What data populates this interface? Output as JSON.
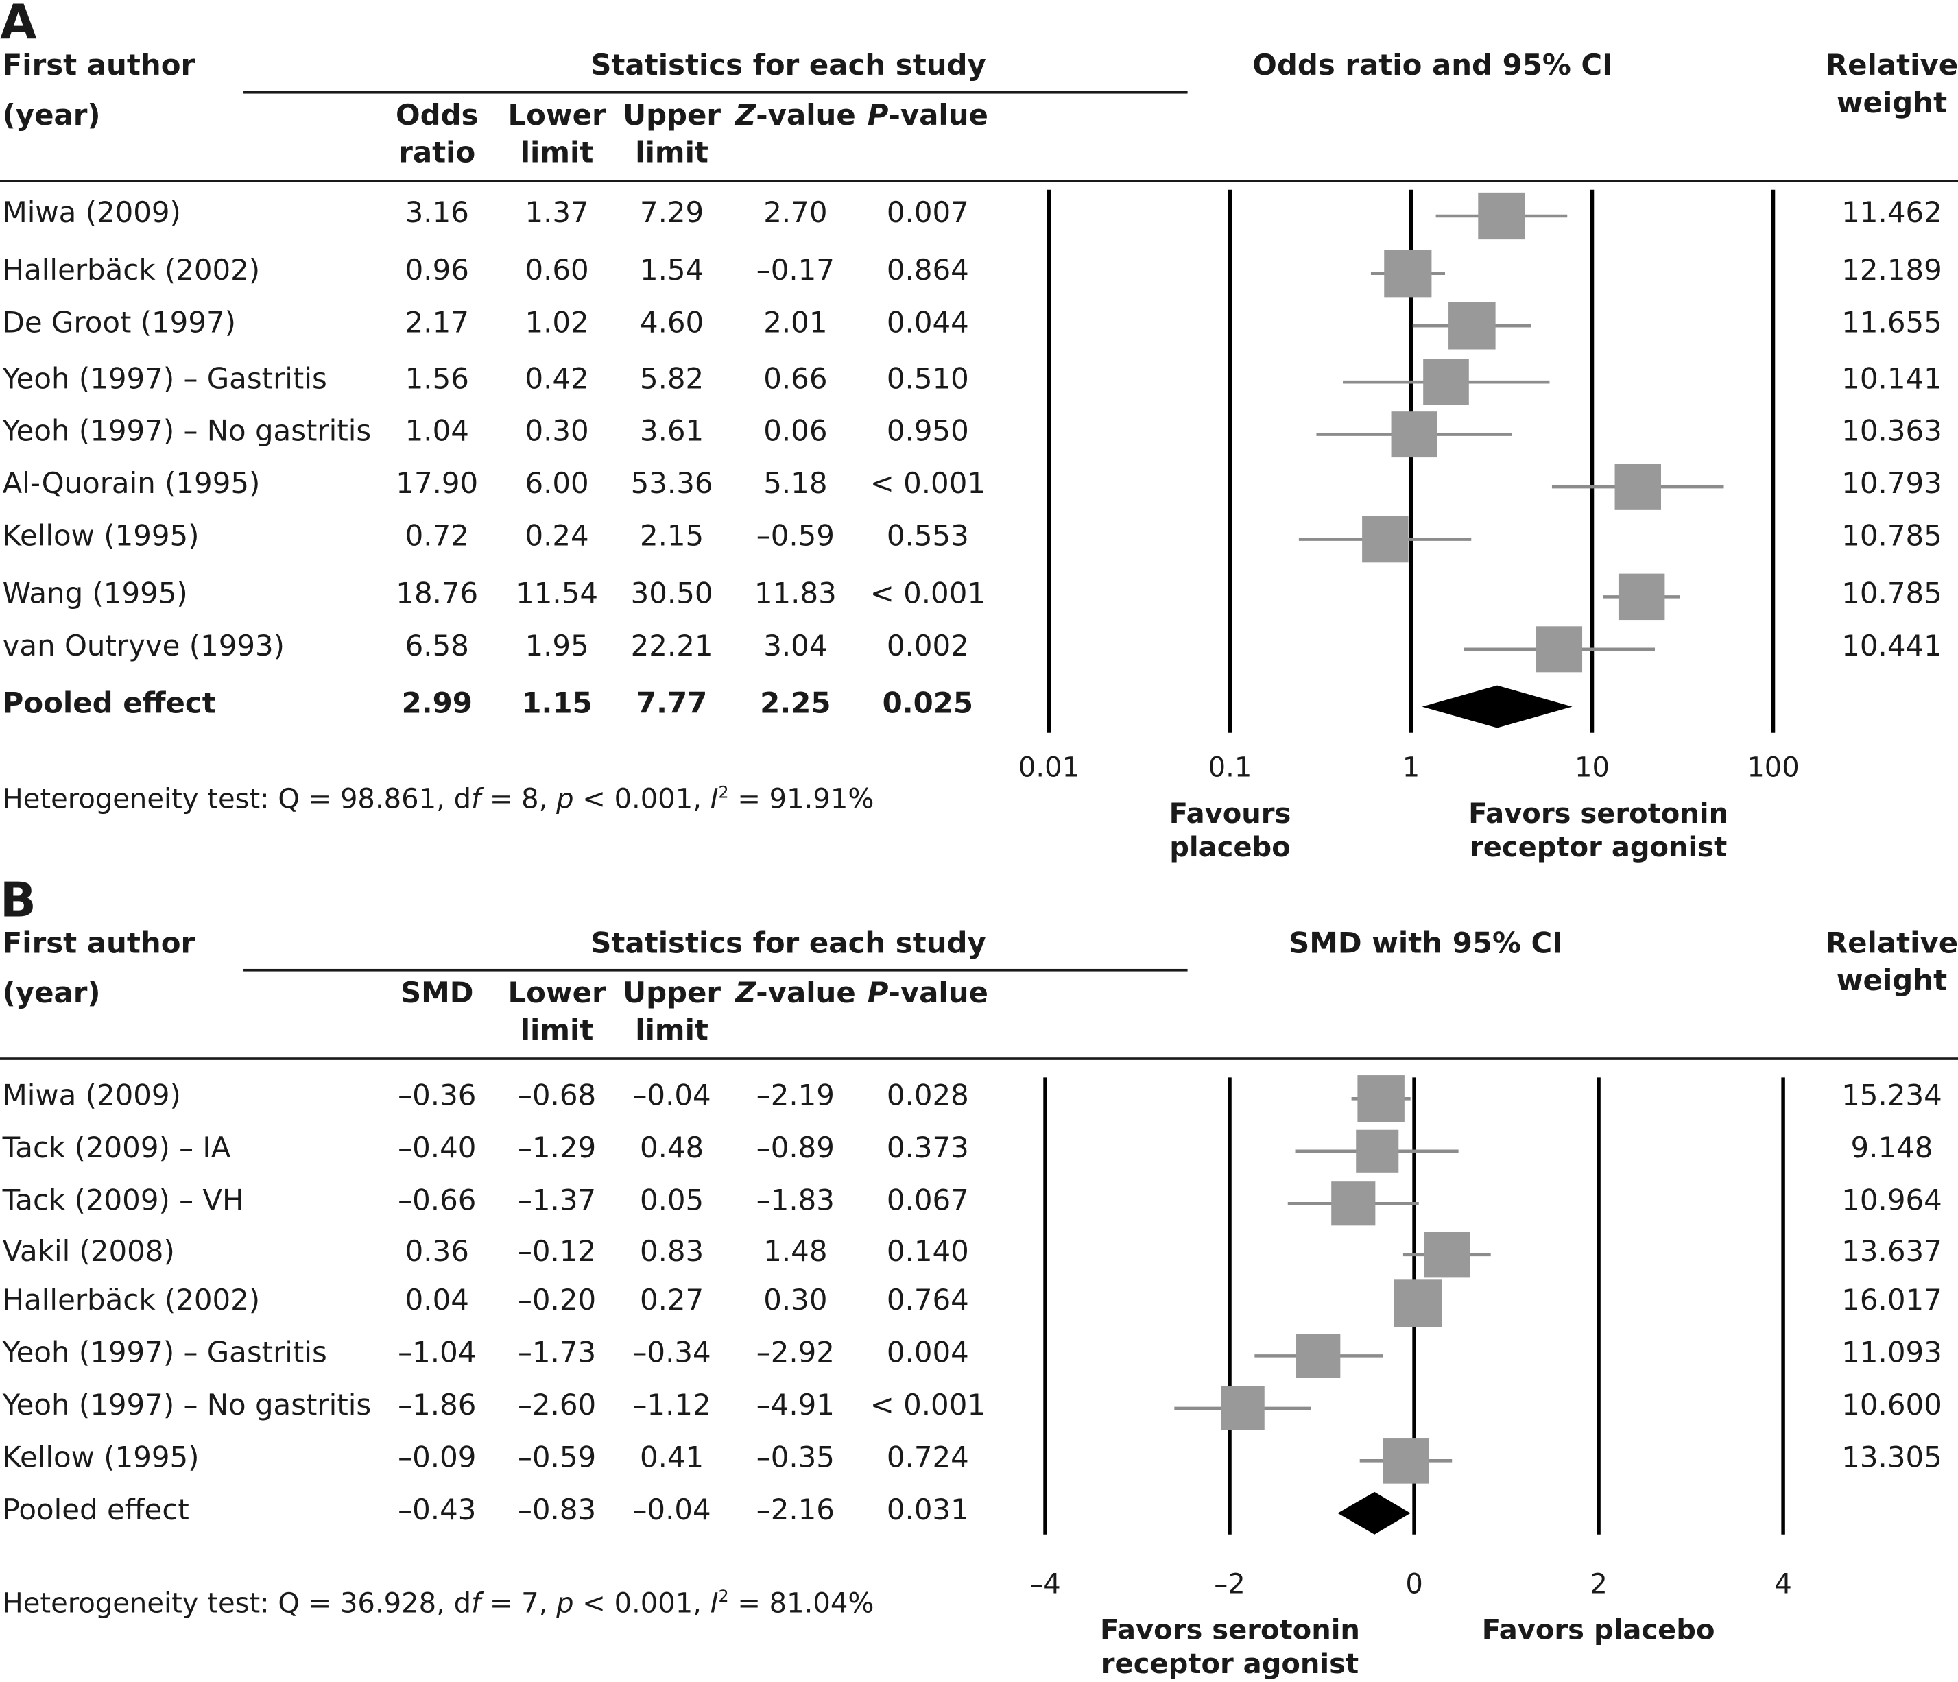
{
  "panels": [
    {
      "letter": "A",
      "header": {
        "first_author_line1": "First author",
        "first_author_line2": "(year)",
        "stats_title": "Statistics for each study",
        "col1": [
          "Odds",
          "ratio"
        ],
        "col2": [
          "Lower",
          "limit"
        ],
        "col3": [
          "Upper",
          "limit"
        ],
        "col4": "Z-value",
        "col5": "P-value",
        "plot_title": "Odds ratio and 95% CI",
        "weight": [
          "Relative",
          "weight"
        ]
      },
      "rows": [
        {
          "author": "Miwa (2009)",
          "est": "3.16",
          "lower": "1.37",
          "upper": "7.29",
          "z": "2.70",
          "p": "0.007",
          "weight": "11.462"
        },
        {
          "author": "Hallerbäck (2002)",
          "est": "0.96",
          "lower": "0.60",
          "upper": "1.54",
          "z": "–0.17",
          "p": "0.864",
          "weight": "12.189"
        },
        {
          "author": "De Groot (1997)",
          "est": "2.17",
          "lower": "1.02",
          "upper": "4.60",
          "z": "2.01",
          "p": "0.044",
          "weight": "11.655"
        },
        {
          "author": "Yeoh (1997) – Gastritis",
          "est": "1.56",
          "lower": "0.42",
          "upper": "5.82",
          "z": "0.66",
          "p": "0.510",
          "weight": "10.141"
        },
        {
          "author": "Yeoh (1997) – No gastritis",
          "est": "1.04",
          "lower": "0.30",
          "upper": "3.61",
          "z": "0.06",
          "p": "0.950",
          "weight": "10.363"
        },
        {
          "author": "Al-Quorain (1995)",
          "est": "17.90",
          "lower": "6.00",
          "upper": "53.36",
          "z": "5.18",
          "p": "< 0.001",
          "weight": "10.793"
        },
        {
          "author": "Kellow (1995)",
          "est": "0.72",
          "lower": "0.24",
          "upper": "2.15",
          "z": "–0.59",
          "p": "0.553",
          "weight": "10.785"
        },
        {
          "author": "Wang (1995)",
          "est": "18.76",
          "lower": "11.54",
          "upper": "30.50",
          "z": "11.83",
          "p": "< 0.001",
          "weight": "10.785"
        },
        {
          "author": "van Outryve (1993)",
          "est": "6.58",
          "lower": "1.95",
          "upper": "22.21",
          "z": "3.04",
          "p": "0.002",
          "weight": "10.441"
        }
      ],
      "pooled": {
        "author": "Pooled effect",
        "est": "2.99",
        "lower": "1.15",
        "upper": "7.77",
        "z": "2.25",
        "p": "0.025",
        "bold": true
      },
      "heterogeneity": {
        "q": "Heterogeneity test: Q = 98.861, d",
        "df_sym": "f",
        "df": " = 8, ",
        "p_sym": "p",
        "p": " < 0.001, ",
        "i_sym": "I",
        "i_sup": "2",
        "i": " = 91.91%"
      },
      "axis": {
        "scale": "log",
        "ticks": [
          0.01,
          0.1,
          1,
          10,
          100
        ],
        "tick_labels": [
          "0.01",
          "0.1",
          "1",
          "10",
          "100"
        ]
      },
      "favors_left": [
        "Favours",
        "placebo"
      ],
      "favors_right": [
        "Favors serotonin",
        "receptor agonist"
      ]
    },
    {
      "letter": "B",
      "header": {
        "first_author_line1": "First author",
        "first_author_line2": "(year)",
        "stats_title": "Statistics for each study",
        "col1": [
          "SMD",
          ""
        ],
        "col2": [
          "Lower",
          "limit"
        ],
        "col3": [
          "Upper",
          "limit"
        ],
        "col4": "Z-value",
        "col5": "P-value",
        "plot_title": "SMD with 95% CI",
        "weight": [
          "Relative",
          "weight"
        ]
      },
      "rows": [
        {
          "author": "Miwa (2009)",
          "est": "–0.36",
          "lower": "–0.68",
          "upper": "–0.04",
          "z": "–2.19",
          "p": "0.028",
          "weight": "15.234"
        },
        {
          "author": "Tack (2009) – IA",
          "est": "–0.40",
          "lower": "–1.29",
          "upper": "0.48",
          "z": "–0.89",
          "p": "0.373",
          "weight": "9.148"
        },
        {
          "author": "Tack (2009) – VH",
          "est": "–0.66",
          "lower": "–1.37",
          "upper": "0.05",
          "z": "–1.83",
          "p": "0.067",
          "weight": "10.964"
        },
        {
          "author": "Vakil (2008)",
          "est": "0.36",
          "lower": "–0.12",
          "upper": "0.83",
          "z": "1.48",
          "p": "0.140",
          "weight": "13.637"
        },
        {
          "author": "Hallerbäck (2002)",
          "est": "0.04",
          "lower": "–0.20",
          "upper": "0.27",
          "z": "0.30",
          "p": "0.764",
          "weight": "16.017"
        },
        {
          "author": "Yeoh (1997) – Gastritis",
          "est": "–1.04",
          "lower": "–1.73",
          "upper": "–0.34",
          "z": "–2.92",
          "p": "0.004",
          "weight": "11.093"
        },
        {
          "author": "Yeoh (1997) – No gastritis",
          "est": "–1.86",
          "lower": "–2.60",
          "upper": "–1.12",
          "z": "–4.91",
          "p": "< 0.001",
          "weight": "10.600"
        },
        {
          "author": "Kellow (1995)",
          "est": "–0.09",
          "lower": "–0.59",
          "upper": "0.41",
          "z": "–0.35",
          "p": "0.724",
          "weight": "13.305"
        }
      ],
      "pooled": {
        "author": "Pooled effect",
        "est": "–0.43",
        "lower": "–0.83",
        "upper": "–0.04",
        "z": "–2.16",
        "p": "0.031",
        "bold": false
      },
      "heterogeneity": {
        "q": "Heterogeneity test: Q = 36.928, d",
        "df_sym": "f",
        "df": " = 7, ",
        "p_sym": "p",
        "p": " < 0.001, ",
        "i_sym": "I",
        "i_sup": "2",
        "i": " = 81.04%"
      },
      "axis": {
        "scale": "linear",
        "ticks": [
          -4,
          -2,
          0,
          2,
          4
        ],
        "tick_labels": [
          "–4",
          "–2",
          "0",
          "2",
          "4"
        ]
      },
      "favors_left": [
        "Favors serotonin",
        "receptor agonist"
      ],
      "favors_right": [
        "Favors placebo",
        ""
      ]
    }
  ],
  "colors": {
    "marker": "#999999",
    "ci_line": "#8c8c8c",
    "diamond": "#000000",
    "axis": "#000000",
    "text": "#1a1a1a"
  },
  "chart_data": [
    {
      "type": "forest",
      "measure": "Odds ratio",
      "x_scale": "log",
      "xlim": [
        0.01,
        100
      ],
      "x_ticks": [
        0.01,
        0.1,
        1,
        10,
        100
      ],
      "categories": [
        "Miwa (2009)",
        "Hallerbäck (2002)",
        "De Groot (1997)",
        "Yeoh (1997) – Gastritis",
        "Yeoh (1997) – No gastritis",
        "Al-Quorain (1995)",
        "Kellow (1995)",
        "Wang (1995)",
        "van Outryve (1993)"
      ],
      "estimate": [
        3.16,
        0.96,
        2.17,
        1.56,
        1.04,
        17.9,
        0.72,
        18.76,
        6.58
      ],
      "lower": [
        1.37,
        0.6,
        1.02,
        0.42,
        0.3,
        6.0,
        0.24,
        11.54,
        1.95
      ],
      "upper": [
        7.29,
        1.54,
        4.6,
        5.82,
        3.61,
        53.36,
        2.15,
        30.5,
        22.21
      ],
      "weight": [
        11.462,
        12.189,
        11.655,
        10.141,
        10.363,
        10.793,
        10.785,
        10.785,
        10.441
      ],
      "pooled": {
        "estimate": 2.99,
        "lower": 1.15,
        "upper": 7.77
      }
    },
    {
      "type": "forest",
      "measure": "SMD",
      "x_scale": "linear",
      "xlim": [
        -4,
        4
      ],
      "x_ticks": [
        -4,
        -2,
        0,
        2,
        4
      ],
      "categories": [
        "Miwa (2009)",
        "Tack (2009) – IA",
        "Tack (2009) – VH",
        "Vakil (2008)",
        "Hallerbäck (2002)",
        "Yeoh (1997) – Gastritis",
        "Yeoh (1997) – No gastritis",
        "Kellow (1995)"
      ],
      "estimate": [
        -0.36,
        -0.4,
        -0.66,
        0.36,
        0.04,
        -1.04,
        -1.86,
        -0.09
      ],
      "lower": [
        -0.68,
        -1.29,
        -1.37,
        -0.12,
        -0.2,
        -1.73,
        -2.6,
        -0.59
      ],
      "upper": [
        -0.04,
        0.48,
        0.05,
        0.83,
        0.27,
        -0.34,
        -1.12,
        0.41
      ],
      "weight": [
        15.234,
        9.148,
        10.964,
        13.637,
        16.017,
        11.093,
        10.6,
        13.305
      ],
      "pooled": {
        "estimate": -0.43,
        "lower": -0.83,
        "upper": -0.04
      }
    }
  ]
}
